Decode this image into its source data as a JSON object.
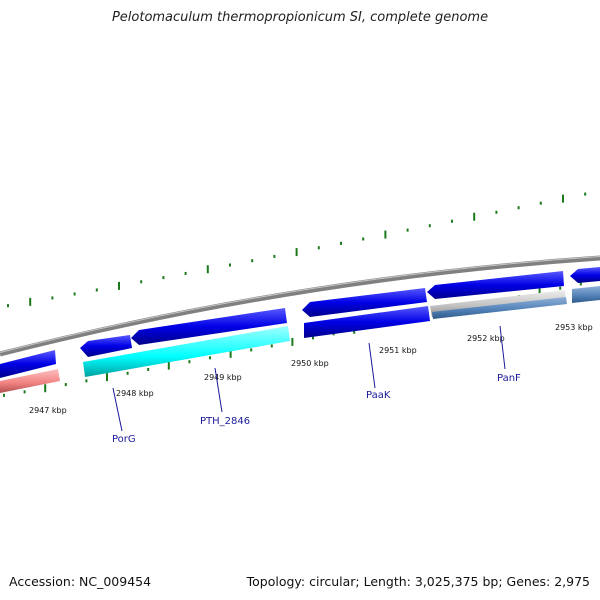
{
  "title": "Pelotomaculum thermopropionicum SI, complete genome",
  "footer": {
    "accession": "Accession: NC_009454",
    "summary": "Topology: circular; Length: 3,025,375 bp; Genes: 2,975"
  },
  "colors": {
    "backbone": "#808080",
    "forward_gene": "#0000e6",
    "highlight_gene": "#00ffff",
    "pseudo_gene": "#f08080",
    "misc_gene": "#c0c0c0",
    "steel_gene": "#4f7fb5",
    "gc_ticks": "#1a7a1a",
    "label_line": "#1a1a9a"
  },
  "scale_labels": [
    "2947 kbp",
    "2948 kbp",
    "2949 kbp",
    "2950 kbp",
    "2951 kbp",
    "2952 kbp",
    "2953 kbp"
  ],
  "gene_labels": [
    "PorG",
    "PTH_2846",
    "PaaK",
    "PanF"
  ]
}
